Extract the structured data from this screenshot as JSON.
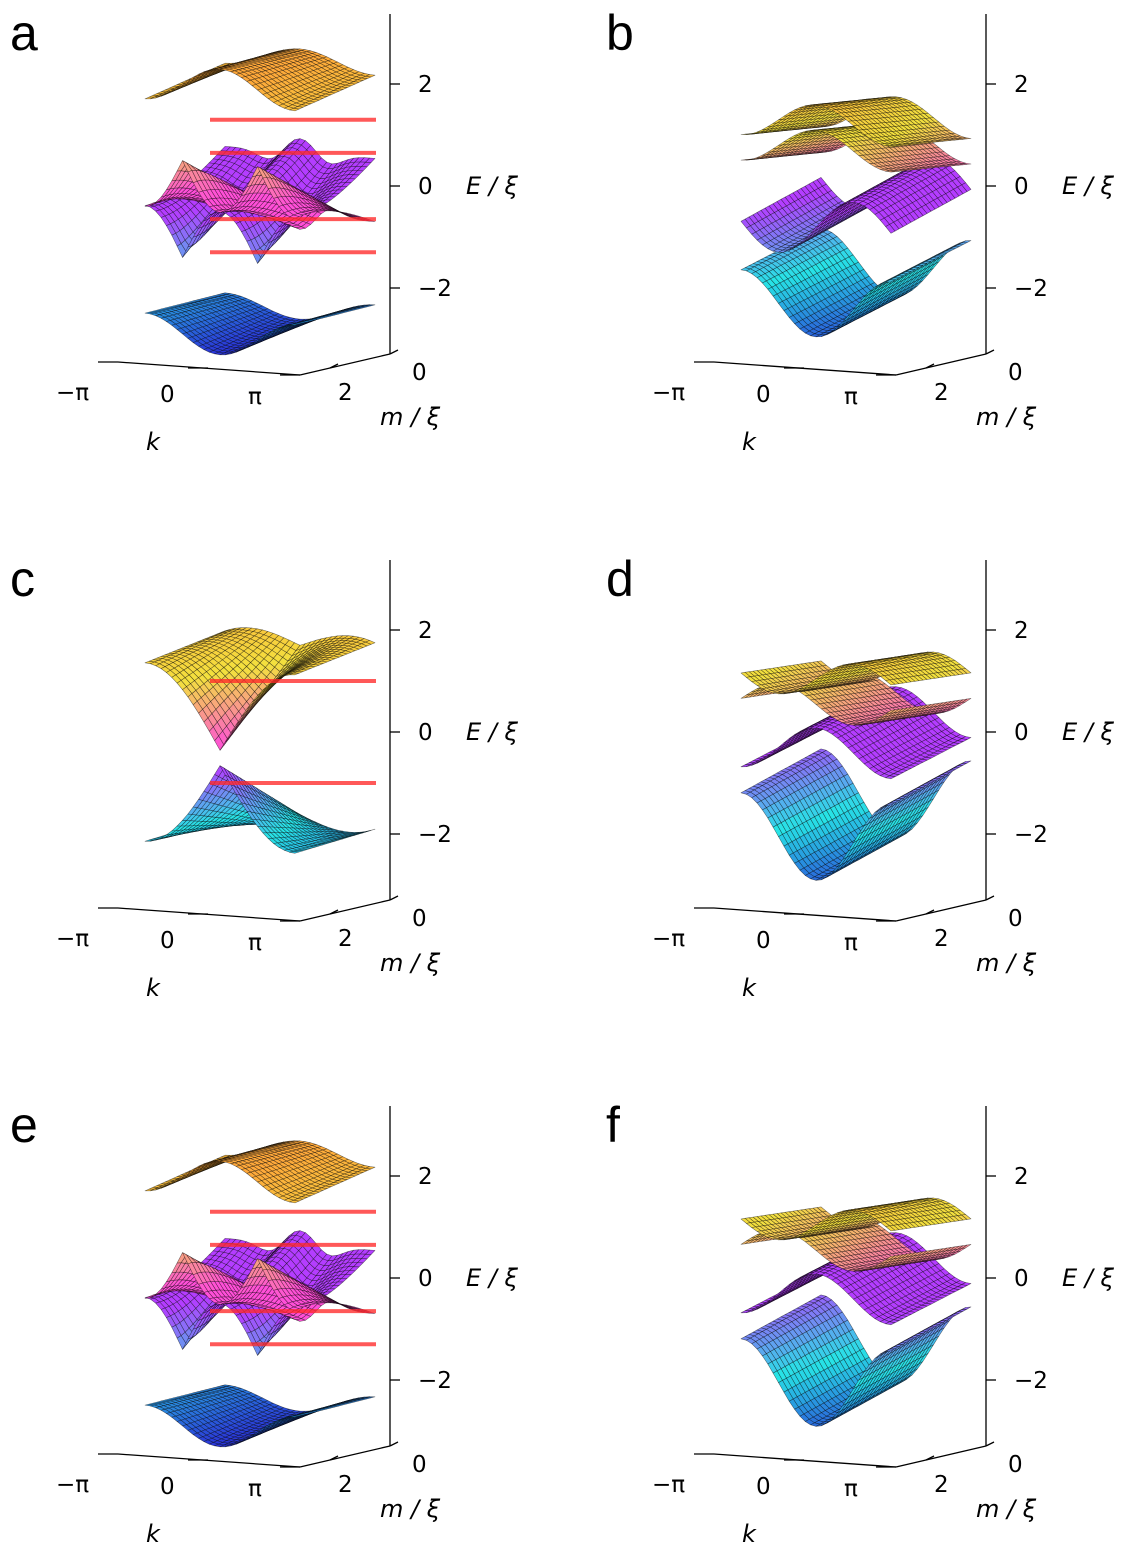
{
  "figure": {
    "panels": [
      "a",
      "b",
      "c",
      "d",
      "e",
      "f"
    ]
  },
  "axes": {
    "energy": {
      "label": "E / ξ",
      "ticks": [
        "2",
        "0",
        "−2"
      ]
    },
    "momentum": {
      "label": "k",
      "ticks": [
        "−π",
        "0",
        "π"
      ]
    },
    "mass": {
      "label": "m / ξ",
      "ticks": [
        "2",
        "0"
      ]
    }
  },
  "colors": {
    "band_top_high": "#ffa83a",
    "band_top_mid": "#f3e13e",
    "band_top_low": "#ff4fd8",
    "band_bottom_high": "#b43dff",
    "band_bottom_mid": "#27e4e6",
    "band_bottom_low": "#2a34d8",
    "red_line": "#ff2a2a"
  },
  "chart_data": [
    {
      "panel": "a",
      "type": "surface3d",
      "xlabel": "k",
      "ylabel": "m / ξ",
      "zlabel": "E / ξ",
      "x_ticks": [
        "−π",
        "0",
        "π"
      ],
      "y_ticks": [
        "2",
        "0"
      ],
      "z_ticks": [
        "2",
        "0",
        "−2"
      ],
      "bands": 4,
      "gap_closing": "Dirac point at k = 0, m = 0 (E = 0)",
      "red_levels_E": [
        1.3,
        0.65,
        -0.65,
        -1.3
      ]
    },
    {
      "panel": "b",
      "type": "surface3d",
      "xlabel": "k",
      "ylabel": "m / ξ",
      "zlabel": "E / ξ",
      "x_ticks": [
        "−π",
        "0",
        "π"
      ],
      "y_ticks": [
        "2",
        "0"
      ],
      "z_ticks": [
        "2",
        "0",
        "−2"
      ],
      "bands": 4,
      "gap_closing": "none",
      "red_levels_E": []
    },
    {
      "panel": "c",
      "type": "surface3d",
      "xlabel": "k",
      "ylabel": "m / ξ",
      "zlabel": "E / ξ",
      "x_ticks": [
        "−π",
        "0",
        "π"
      ],
      "y_ticks": [
        "2",
        "0"
      ],
      "z_ticks": [
        "2",
        "0",
        "−2"
      ],
      "bands": 2,
      "gap_closing": "Dirac point at k = 0, m = 0 (E = 0)",
      "red_levels_E": [
        1.0,
        -1.0
      ]
    },
    {
      "panel": "d",
      "type": "surface3d",
      "xlabel": "k",
      "ylabel": "m / ξ",
      "zlabel": "E / ξ",
      "x_ticks": [
        "−π",
        "0",
        "π"
      ],
      "y_ticks": [
        "2",
        "0"
      ],
      "z_ticks": [
        "2",
        "0",
        "−2"
      ],
      "bands": 4,
      "gap_closing": "touching point near E = 0.5",
      "red_levels_E": []
    },
    {
      "panel": "e",
      "type": "surface3d",
      "xlabel": "k",
      "ylabel": "m / ξ",
      "zlabel": "E / ξ",
      "x_ticks": [
        "−π",
        "0",
        "π"
      ],
      "y_ticks": [
        "2",
        "0"
      ],
      "z_ticks": [
        "2",
        "0",
        "−2"
      ],
      "bands": 4,
      "gap_closing": "Dirac point at k = 0, m = 0 (E = 0)",
      "red_levels_E": [
        1.3,
        0.65,
        -0.65,
        -1.3
      ]
    },
    {
      "panel": "f",
      "type": "surface3d",
      "xlabel": "k",
      "ylabel": "m / ξ",
      "zlabel": "E / ξ",
      "x_ticks": [
        "−π",
        "0",
        "π"
      ],
      "y_ticks": [
        "2",
        "0"
      ],
      "z_ticks": [
        "2",
        "0",
        "−2"
      ],
      "bands": 4,
      "gap_closing": "touching point near E = 0.5",
      "red_levels_E": []
    }
  ]
}
